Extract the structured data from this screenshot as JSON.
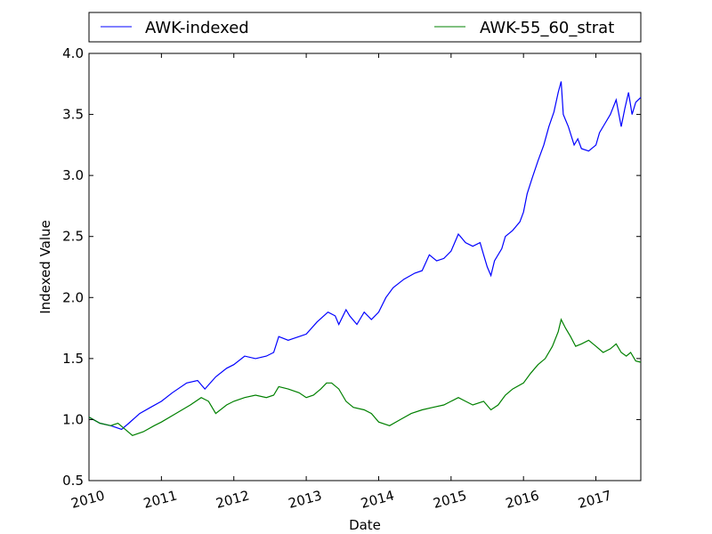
{
  "chart_data": {
    "type": "line",
    "title": "",
    "xlabel": "Date",
    "ylabel": "Indexed Value",
    "xlim": [
      2010.0,
      2017.62
    ],
    "ylim": [
      0.5,
      4.0
    ],
    "x_ticks": [
      "2010",
      "2011",
      "2012",
      "2013",
      "2014",
      "2015",
      "2016",
      "2017"
    ],
    "y_ticks": [
      "0.5",
      "1.0",
      "1.5",
      "2.0",
      "2.5",
      "3.0",
      "3.5",
      "4.0"
    ],
    "grid": false,
    "legend_position": "top, above plot, two columns",
    "series": [
      {
        "name": "AWK-indexed",
        "color": "#0000ff",
        "x": [
          2010.0,
          2010.15,
          2010.3,
          2010.45,
          2010.55,
          2010.7,
          2010.85,
          2011.0,
          2011.15,
          2011.35,
          2011.5,
          2011.6,
          2011.75,
          2011.9,
          2012.0,
          2012.15,
          2012.3,
          2012.45,
          2012.55,
          2012.62,
          2012.75,
          2012.9,
          2013.0,
          2013.15,
          2013.3,
          2013.4,
          2013.45,
          2013.55,
          2013.6,
          2013.7,
          2013.8,
          2013.9,
          2014.0,
          2014.1,
          2014.2,
          2014.35,
          2014.5,
          2014.6,
          2014.7,
          2014.8,
          2014.9,
          2015.0,
          2015.05,
          2015.1,
          2015.2,
          2015.3,
          2015.4,
          2015.45,
          2015.5,
          2015.55,
          2015.6,
          2015.7,
          2015.75,
          2015.85,
          2015.95,
          2016.0,
          2016.05,
          2016.12,
          2016.2,
          2016.28,
          2016.35,
          2016.42,
          2016.48,
          2016.52,
          2016.55,
          2016.62,
          2016.7,
          2016.75,
          2016.8,
          2016.9,
          2017.0,
          2017.05,
          2017.12,
          2017.2,
          2017.28,
          2017.35,
          2017.4,
          2017.45,
          2017.5,
          2017.55,
          2017.62
        ],
        "y": [
          1.02,
          0.97,
          0.95,
          0.92,
          0.97,
          1.05,
          1.1,
          1.15,
          1.22,
          1.3,
          1.32,
          1.25,
          1.35,
          1.42,
          1.45,
          1.52,
          1.5,
          1.52,
          1.55,
          1.68,
          1.65,
          1.68,
          1.7,
          1.8,
          1.88,
          1.85,
          1.78,
          1.9,
          1.85,
          1.78,
          1.88,
          1.82,
          1.88,
          2.0,
          2.08,
          2.15,
          2.2,
          2.22,
          2.35,
          2.3,
          2.32,
          2.38,
          2.45,
          2.52,
          2.45,
          2.42,
          2.45,
          2.35,
          2.25,
          2.18,
          2.3,
          2.4,
          2.5,
          2.55,
          2.62,
          2.7,
          2.85,
          2.98,
          3.12,
          3.25,
          3.4,
          3.52,
          3.68,
          3.77,
          3.5,
          3.4,
          3.25,
          3.3,
          3.22,
          3.2,
          3.25,
          3.35,
          3.42,
          3.5,
          3.62,
          3.4,
          3.55,
          3.68,
          3.5,
          3.6,
          3.64
        ]
      },
      {
        "name": "AWK-55_60_strat",
        "color": "#008000",
        "x": [
          2010.0,
          2010.15,
          2010.3,
          2010.4,
          2010.5,
          2010.6,
          2010.75,
          2010.9,
          2011.0,
          2011.2,
          2011.4,
          2011.55,
          2011.65,
          2011.75,
          2011.9,
          2012.0,
          2012.15,
          2012.3,
          2012.45,
          2012.55,
          2012.62,
          2012.75,
          2012.9,
          2013.0,
          2013.1,
          2013.2,
          2013.28,
          2013.35,
          2013.45,
          2013.55,
          2013.65,
          2013.8,
          2013.9,
          2014.0,
          2014.15,
          2014.3,
          2014.45,
          2014.6,
          2014.75,
          2014.9,
          2015.0,
          2015.1,
          2015.2,
          2015.3,
          2015.45,
          2015.55,
          2015.65,
          2015.75,
          2015.85,
          2016.0,
          2016.1,
          2016.2,
          2016.3,
          2016.4,
          2016.48,
          2016.52,
          2016.58,
          2016.65,
          2016.72,
          2016.8,
          2016.9,
          2017.0,
          2017.1,
          2017.2,
          2017.28,
          2017.35,
          2017.42,
          2017.48,
          2017.55,
          2017.62
        ],
        "y": [
          1.02,
          0.97,
          0.95,
          0.97,
          0.92,
          0.87,
          0.9,
          0.95,
          0.98,
          1.05,
          1.12,
          1.18,
          1.15,
          1.05,
          1.12,
          1.15,
          1.18,
          1.2,
          1.18,
          1.2,
          1.27,
          1.25,
          1.22,
          1.18,
          1.2,
          1.25,
          1.3,
          1.3,
          1.25,
          1.15,
          1.1,
          1.08,
          1.05,
          0.98,
          0.95,
          1.0,
          1.05,
          1.08,
          1.1,
          1.12,
          1.15,
          1.18,
          1.15,
          1.12,
          1.15,
          1.08,
          1.12,
          1.2,
          1.25,
          1.3,
          1.38,
          1.45,
          1.5,
          1.6,
          1.72,
          1.82,
          1.75,
          1.68,
          1.6,
          1.62,
          1.65,
          1.6,
          1.55,
          1.58,
          1.62,
          1.55,
          1.52,
          1.55,
          1.48,
          1.47
        ]
      }
    ]
  }
}
